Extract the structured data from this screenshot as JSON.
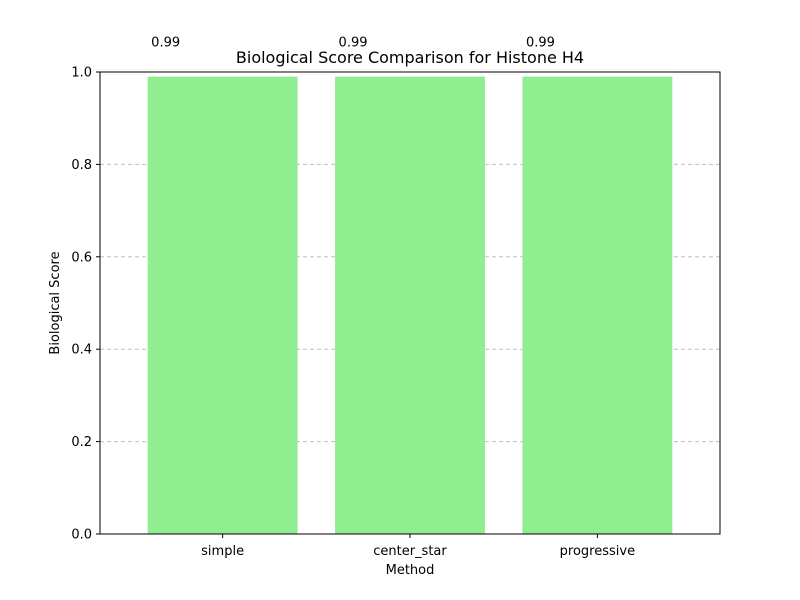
{
  "chart_data": {
    "type": "bar",
    "title": "Biological Score Comparison for Histone H4",
    "xlabel": "Method",
    "ylabel": "Biological Score",
    "categories": [
      "simple",
      "center_star",
      "progressive"
    ],
    "values": [
      0.99,
      0.99,
      0.99
    ],
    "data_labels": [
      "0.99",
      "0.99",
      "0.99"
    ],
    "ylim": [
      0,
      1.0
    ],
    "yticks": [
      0.0,
      0.2,
      0.4,
      0.6,
      0.8,
      1.0
    ],
    "ytick_labels": [
      "0.0",
      "0.2",
      "0.4",
      "0.6",
      "0.8",
      "1.0"
    ],
    "grid": "y-axis, dashed",
    "bar_color": "#90ee90",
    "grid_color": "#c0c0c0"
  }
}
